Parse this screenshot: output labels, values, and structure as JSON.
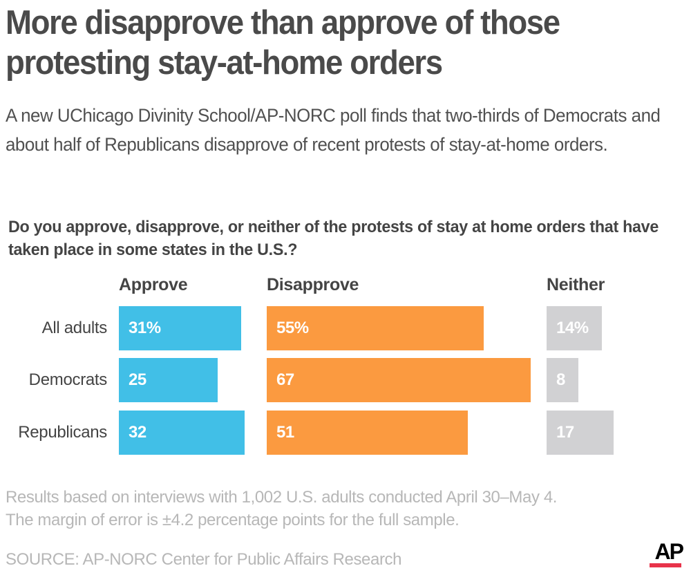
{
  "header": {
    "title": "More disapprove than approve of those protesting stay-at-home orders",
    "subtitle": "A new UChicago Divinity School/AP-NORC poll finds that two-thirds of Democrats and about half of Republicans disapprove of recent protests of stay-at-home orders."
  },
  "chart_data": {
    "type": "bar",
    "orientation": "horizontal",
    "layout": "small-multiples",
    "title": "Do you approve, disapprove, or neither of the protests of stay at home orders that have taken place in some states in the U.S.?",
    "categories": [
      "All adults",
      "Democrats",
      "Republicans"
    ],
    "unit": "%",
    "series": [
      {
        "name": "Approve",
        "color": "#41bfe7",
        "values": [
          31,
          25,
          32
        ],
        "labels": [
          "31%",
          "25",
          "32"
        ]
      },
      {
        "name": "Disapprove",
        "color": "#fb9a40",
        "values": [
          55,
          67,
          51
        ],
        "labels": [
          "55%",
          "67",
          "51"
        ]
      },
      {
        "name": "Neither",
        "color": "#d1d1d3",
        "values": [
          14,
          8,
          17
        ],
        "labels": [
          "14%",
          "8",
          "17"
        ]
      }
    ]
  },
  "footer": {
    "note_line1": "Results based on interviews with 1,002 U.S. adults conducted April 30–May 4.",
    "note_line2": "The margin of error is ±4.2 percentage points for the full sample.",
    "source": "SOURCE: AP-NORC Center for Public Affairs Research",
    "logo_text": "AP",
    "logo_accent_color": "#e8334a"
  }
}
